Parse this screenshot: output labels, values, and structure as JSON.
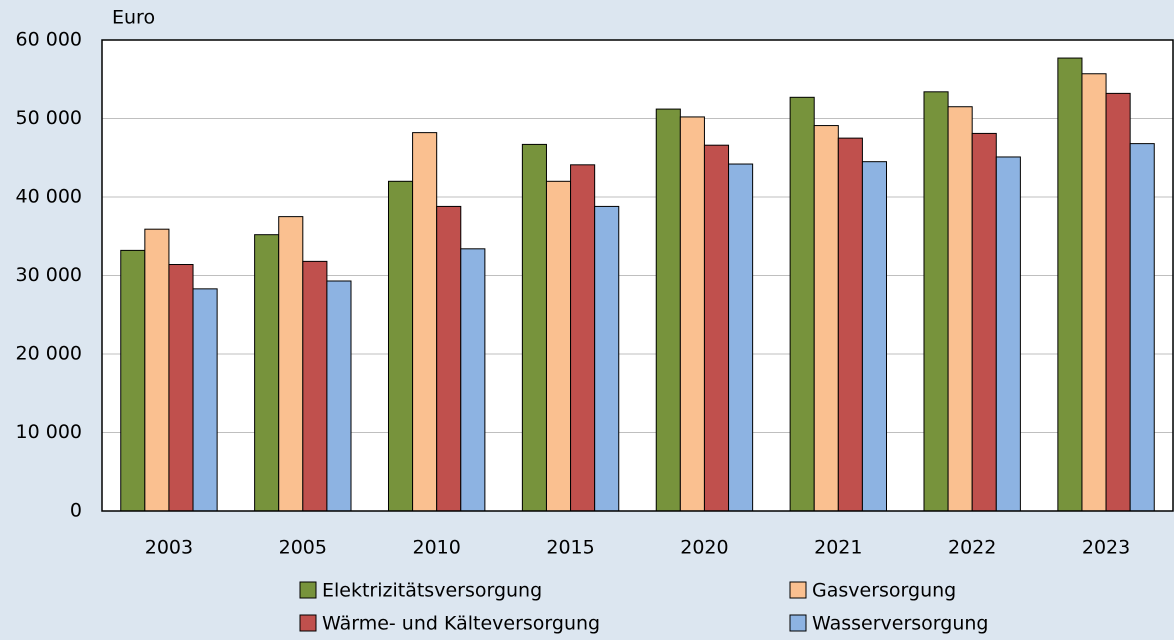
{
  "chart_data": {
    "type": "bar",
    "y_label": "Euro",
    "categories": [
      "2003",
      "2005",
      "2010",
      "2015",
      "2020",
      "2021",
      "2022",
      "2023"
    ],
    "series": [
      {
        "name": "Elektrizitätsversorgung",
        "color": "#77933c",
        "values": [
          33200,
          35200,
          42000,
          46700,
          51200,
          52700,
          53400,
          57700
        ]
      },
      {
        "name": "Gasversorgung",
        "color": "#fac090",
        "values": [
          35900,
          37500,
          48200,
          42000,
          50200,
          49100,
          51500,
          55700
        ]
      },
      {
        "name": "Wärme- und Kälteversorgung",
        "color": "#c0504d",
        "values": [
          31400,
          31800,
          38800,
          44100,
          46600,
          47500,
          48100,
          53200
        ]
      },
      {
        "name": "Wasserversorgung",
        "color": "#8db3e2",
        "values": [
          28300,
          29300,
          33400,
          38800,
          44200,
          44500,
          45100,
          46800
        ]
      }
    ],
    "ylim": [
      0,
      60000
    ],
    "yticks": [
      0,
      {
        "value": 10000,
        "label": "10 000"
      },
      {
        "value": 20000,
        "label": "20 000"
      },
      {
        "value": 30000,
        "label": "30 000"
      },
      {
        "value": 40000,
        "label": "40 000"
      },
      {
        "value": 50000,
        "label": "50 000"
      },
      {
        "value": 60000,
        "label": "60 000"
      }
    ],
    "grid": true,
    "legend": "bottom"
  }
}
